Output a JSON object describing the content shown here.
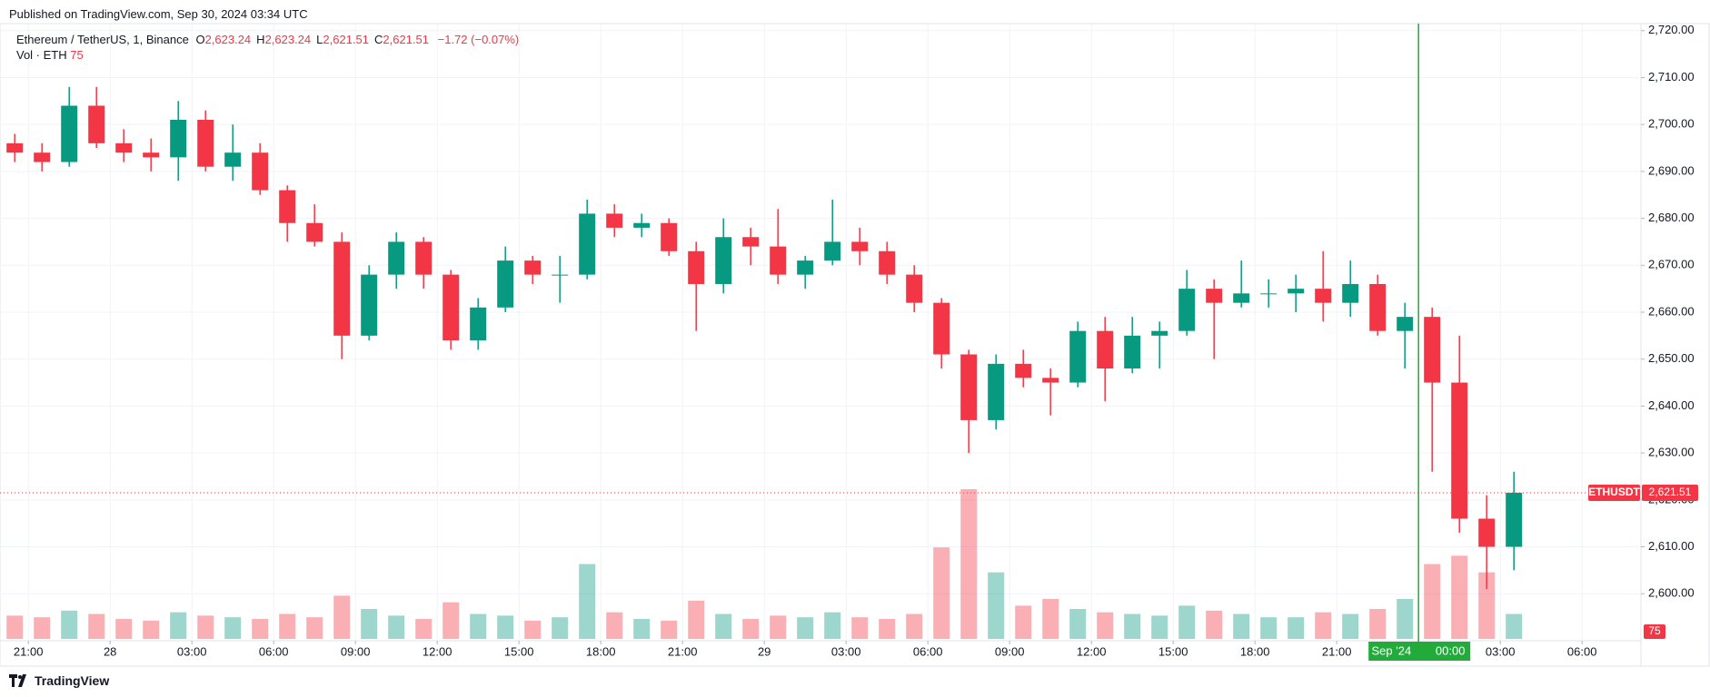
{
  "header": {
    "published": "Published on TradingView.com, Sep 30, 2024 03:34 UTC"
  },
  "chart_data": {
    "type": "candlestick",
    "symbol": "Ethereum / TetherUS, 1, Binance",
    "ohlc_legend": [
      {
        "key": "O",
        "value": "2,623.24"
      },
      {
        "key": "H",
        "value": "2,623.24"
      },
      {
        "key": "L",
        "value": "2,621.51"
      },
      {
        "key": "C",
        "value": "2,621.51"
      }
    ],
    "change": "−1.72 (−0.07%)",
    "volume_legend": "Vol · ETH",
    "volume_last": 75,
    "up_color": "#089981",
    "down_color": "#f23645",
    "x": [
      -3.5,
      -2.5,
      -1.5,
      -0.5,
      0.5,
      1.5,
      2.5,
      3.5,
      4.5,
      5.5,
      6.5,
      7.5,
      8.5,
      9.5,
      10.5,
      11.5,
      12.5,
      13.5,
      14.5,
      15.5,
      16.5,
      17.5,
      18.5,
      19.5,
      20.5,
      21.5,
      22.5,
      23.5,
      24.5,
      25.5,
      26.5,
      27.5,
      28.5,
      29.5,
      30.5,
      31.5,
      32.5,
      33.5,
      34.5,
      35.5,
      36.5,
      37.5,
      38.5,
      39.5,
      40.5,
      41.5,
      42.5,
      43.5,
      44.5,
      45.5,
      46.5,
      47.5,
      48.5,
      49.5,
      50.5,
      51.5
    ],
    "open": [
      2696,
      2694,
      2692,
      2704,
      2696,
      2694,
      2693,
      2701,
      2691,
      2694,
      2686,
      2679,
      2675,
      2655,
      2668,
      2675,
      2668,
      2654,
      2661,
      2671,
      2668,
      2668,
      2681,
      2678,
      2679,
      2673,
      2666,
      2676,
      2674,
      2668,
      2671,
      2675,
      2673,
      2668,
      2662,
      2651,
      2637,
      2649,
      2646,
      2645,
      2656,
      2648,
      2655,
      2656,
      2665,
      2662,
      2664,
      2664,
      2665,
      2662,
      2666,
      2656,
      2659,
      2645,
      2616,
      2610
    ],
    "high": [
      2698,
      2696,
      2708,
      2708,
      2699,
      2697,
      2705,
      2703,
      2700,
      2696,
      2687,
      2683,
      2677,
      2670,
      2677,
      2676,
      2669,
      2663,
      2674,
      2672,
      2672,
      2684,
      2683,
      2681,
      2680,
      2675,
      2680,
      2678,
      2682,
      2672,
      2684,
      2678,
      2675,
      2670,
      2663,
      2652,
      2651,
      2652,
      2648,
      2658,
      2659,
      2659,
      2658,
      2669,
      2667,
      2671,
      2667,
      2668,
      2673,
      2671,
      2668,
      2662,
      2661,
      2655,
      2621,
      2626
    ],
    "low": [
      2692,
      2690,
      2691,
      2695,
      2692,
      2690,
      2688,
      2690,
      2688,
      2685,
      2675,
      2674,
      2650,
      2654,
      2665,
      2665,
      2652,
      2652,
      2660,
      2666,
      2662,
      2667,
      2676,
      2676,
      2672,
      2656,
      2664,
      2670,
      2666,
      2665,
      2670,
      2670,
      2666,
      2660,
      2648,
      2630,
      2635,
      2644,
      2638,
      2644,
      2641,
      2647,
      2648,
      2655,
      2650,
      2661,
      2661,
      2660,
      2658,
      2659,
      2655,
      2648,
      2626,
      2613,
      2601,
      2605
    ],
    "close": [
      2694,
      2692,
      2704,
      2696,
      2694,
      2693,
      2701,
      2691,
      2694,
      2686,
      2679,
      2675,
      2655,
      2668,
      2675,
      2668,
      2654,
      2661,
      2671,
      2668,
      2668,
      2681,
      2678,
      2679,
      2673,
      2666,
      2676,
      2674,
      2668,
      2671,
      2675,
      2673,
      2668,
      2662,
      2651,
      2637,
      2649,
      2646,
      2645,
      2656,
      2648,
      2655,
      2656,
      2665,
      2662,
      2664,
      2664,
      2665,
      2662,
      2666,
      2656,
      2659,
      2645,
      2616,
      2610,
      2621.51
    ],
    "volume": [
      1400,
      1300,
      1700,
      1500,
      1200,
      1100,
      1600,
      1400,
      1300,
      1200,
      1500,
      1300,
      2600,
      1800,
      1400,
      1200,
      2200,
      1500,
      1400,
      1100,
      1300,
      4500,
      1600,
      1200,
      1100,
      2300,
      1500,
      1200,
      1400,
      1300,
      1600,
      1300,
      1200,
      1500,
      5500,
      9000,
      4000,
      2000,
      2400,
      1800,
      1600,
      1500,
      1400,
      2000,
      1700,
      1500,
      1300,
      1300,
      1600,
      1500,
      1800,
      2400,
      4500,
      5000,
      4000,
      1500
    ],
    "vlim": [
      0,
      12000
    ],
    "xlim": [
      -3.72,
      56.12
    ],
    "xticks": [
      {
        "value": -3,
        "label": "21:00"
      },
      {
        "value": 0,
        "label": "28"
      },
      {
        "value": 3,
        "label": "03:00"
      },
      {
        "value": 6,
        "label": "06:00"
      },
      {
        "value": 9,
        "label": "09:00"
      },
      {
        "value": 12,
        "label": "12:00"
      },
      {
        "value": 15,
        "label": "15:00"
      },
      {
        "value": 18,
        "label": "18:00"
      },
      {
        "value": 21,
        "label": "21:00"
      },
      {
        "value": 24,
        "label": "29"
      },
      {
        "value": 27,
        "label": "03:00"
      },
      {
        "value": 30,
        "label": "06:00"
      },
      {
        "value": 33,
        "label": "09:00"
      },
      {
        "value": 36,
        "label": "12:00"
      },
      {
        "value": 39,
        "label": "15:00"
      },
      {
        "value": 42,
        "label": "18:00"
      },
      {
        "value": 45,
        "label": "21:00"
      },
      {
        "value": 51,
        "label": "03:00"
      },
      {
        "value": 54,
        "label": "06:00"
      }
    ],
    "ylim": [
      2589.6,
      2721.5
    ],
    "yticks": [
      {
        "value": 2600,
        "label": "2,600.00"
      },
      {
        "value": 2610,
        "label": "2,610.00"
      },
      {
        "value": 2620,
        "label": "2,620.00"
      },
      {
        "value": 2630,
        "label": "2,630.00"
      },
      {
        "value": 2640,
        "label": "2,640.00"
      },
      {
        "value": 2650,
        "label": "2,650.00"
      },
      {
        "value": 2660,
        "label": "2,660.00"
      },
      {
        "value": 2670,
        "label": "2,670.00"
      },
      {
        "value": 2680,
        "label": "2,680.00"
      },
      {
        "value": 2690,
        "label": "2,690.00"
      },
      {
        "value": 2700,
        "label": "2,700.00"
      },
      {
        "value": 2710,
        "label": "2,710.00"
      },
      {
        "value": 2720,
        "label": "2,720.00"
      }
    ],
    "grid": true,
    "last_price": {
      "name": "ETHUSDT",
      "value": 2621.51,
      "label": "2,621.51"
    },
    "crosshair": {
      "x": 48,
      "date": "30 Sep '24",
      "time": "00:00",
      "color": "#22ab3a"
    }
  },
  "footer": {
    "brand": "TradingView"
  }
}
